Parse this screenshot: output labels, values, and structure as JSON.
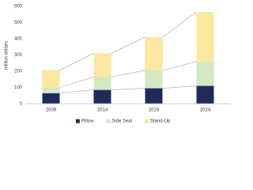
{
  "chart_data": {
    "type": "stacked-bar",
    "y_label": "million dollars",
    "categories": [
      "2009",
      "2014",
      "2019",
      "2024"
    ],
    "series": [
      {
        "name": "Pillow",
        "color": "#1f2a5c",
        "values": [
          65,
          85,
          95,
          110
        ]
      },
      {
        "name": "Side Seal",
        "color": "#d5e8c4",
        "values": [
          35,
          80,
          110,
          150
        ]
      },
      {
        "name": "Stand-Up",
        "color": "#fbe7a1",
        "values": [
          107,
          145,
          205,
          305
        ]
      }
    ],
    "ylim": [
      0,
      600
    ],
    "yticks": [
      0,
      100,
      200,
      300,
      400,
      500,
      600
    ],
    "grid": false,
    "legend": "bottom",
    "series_lines": true
  }
}
